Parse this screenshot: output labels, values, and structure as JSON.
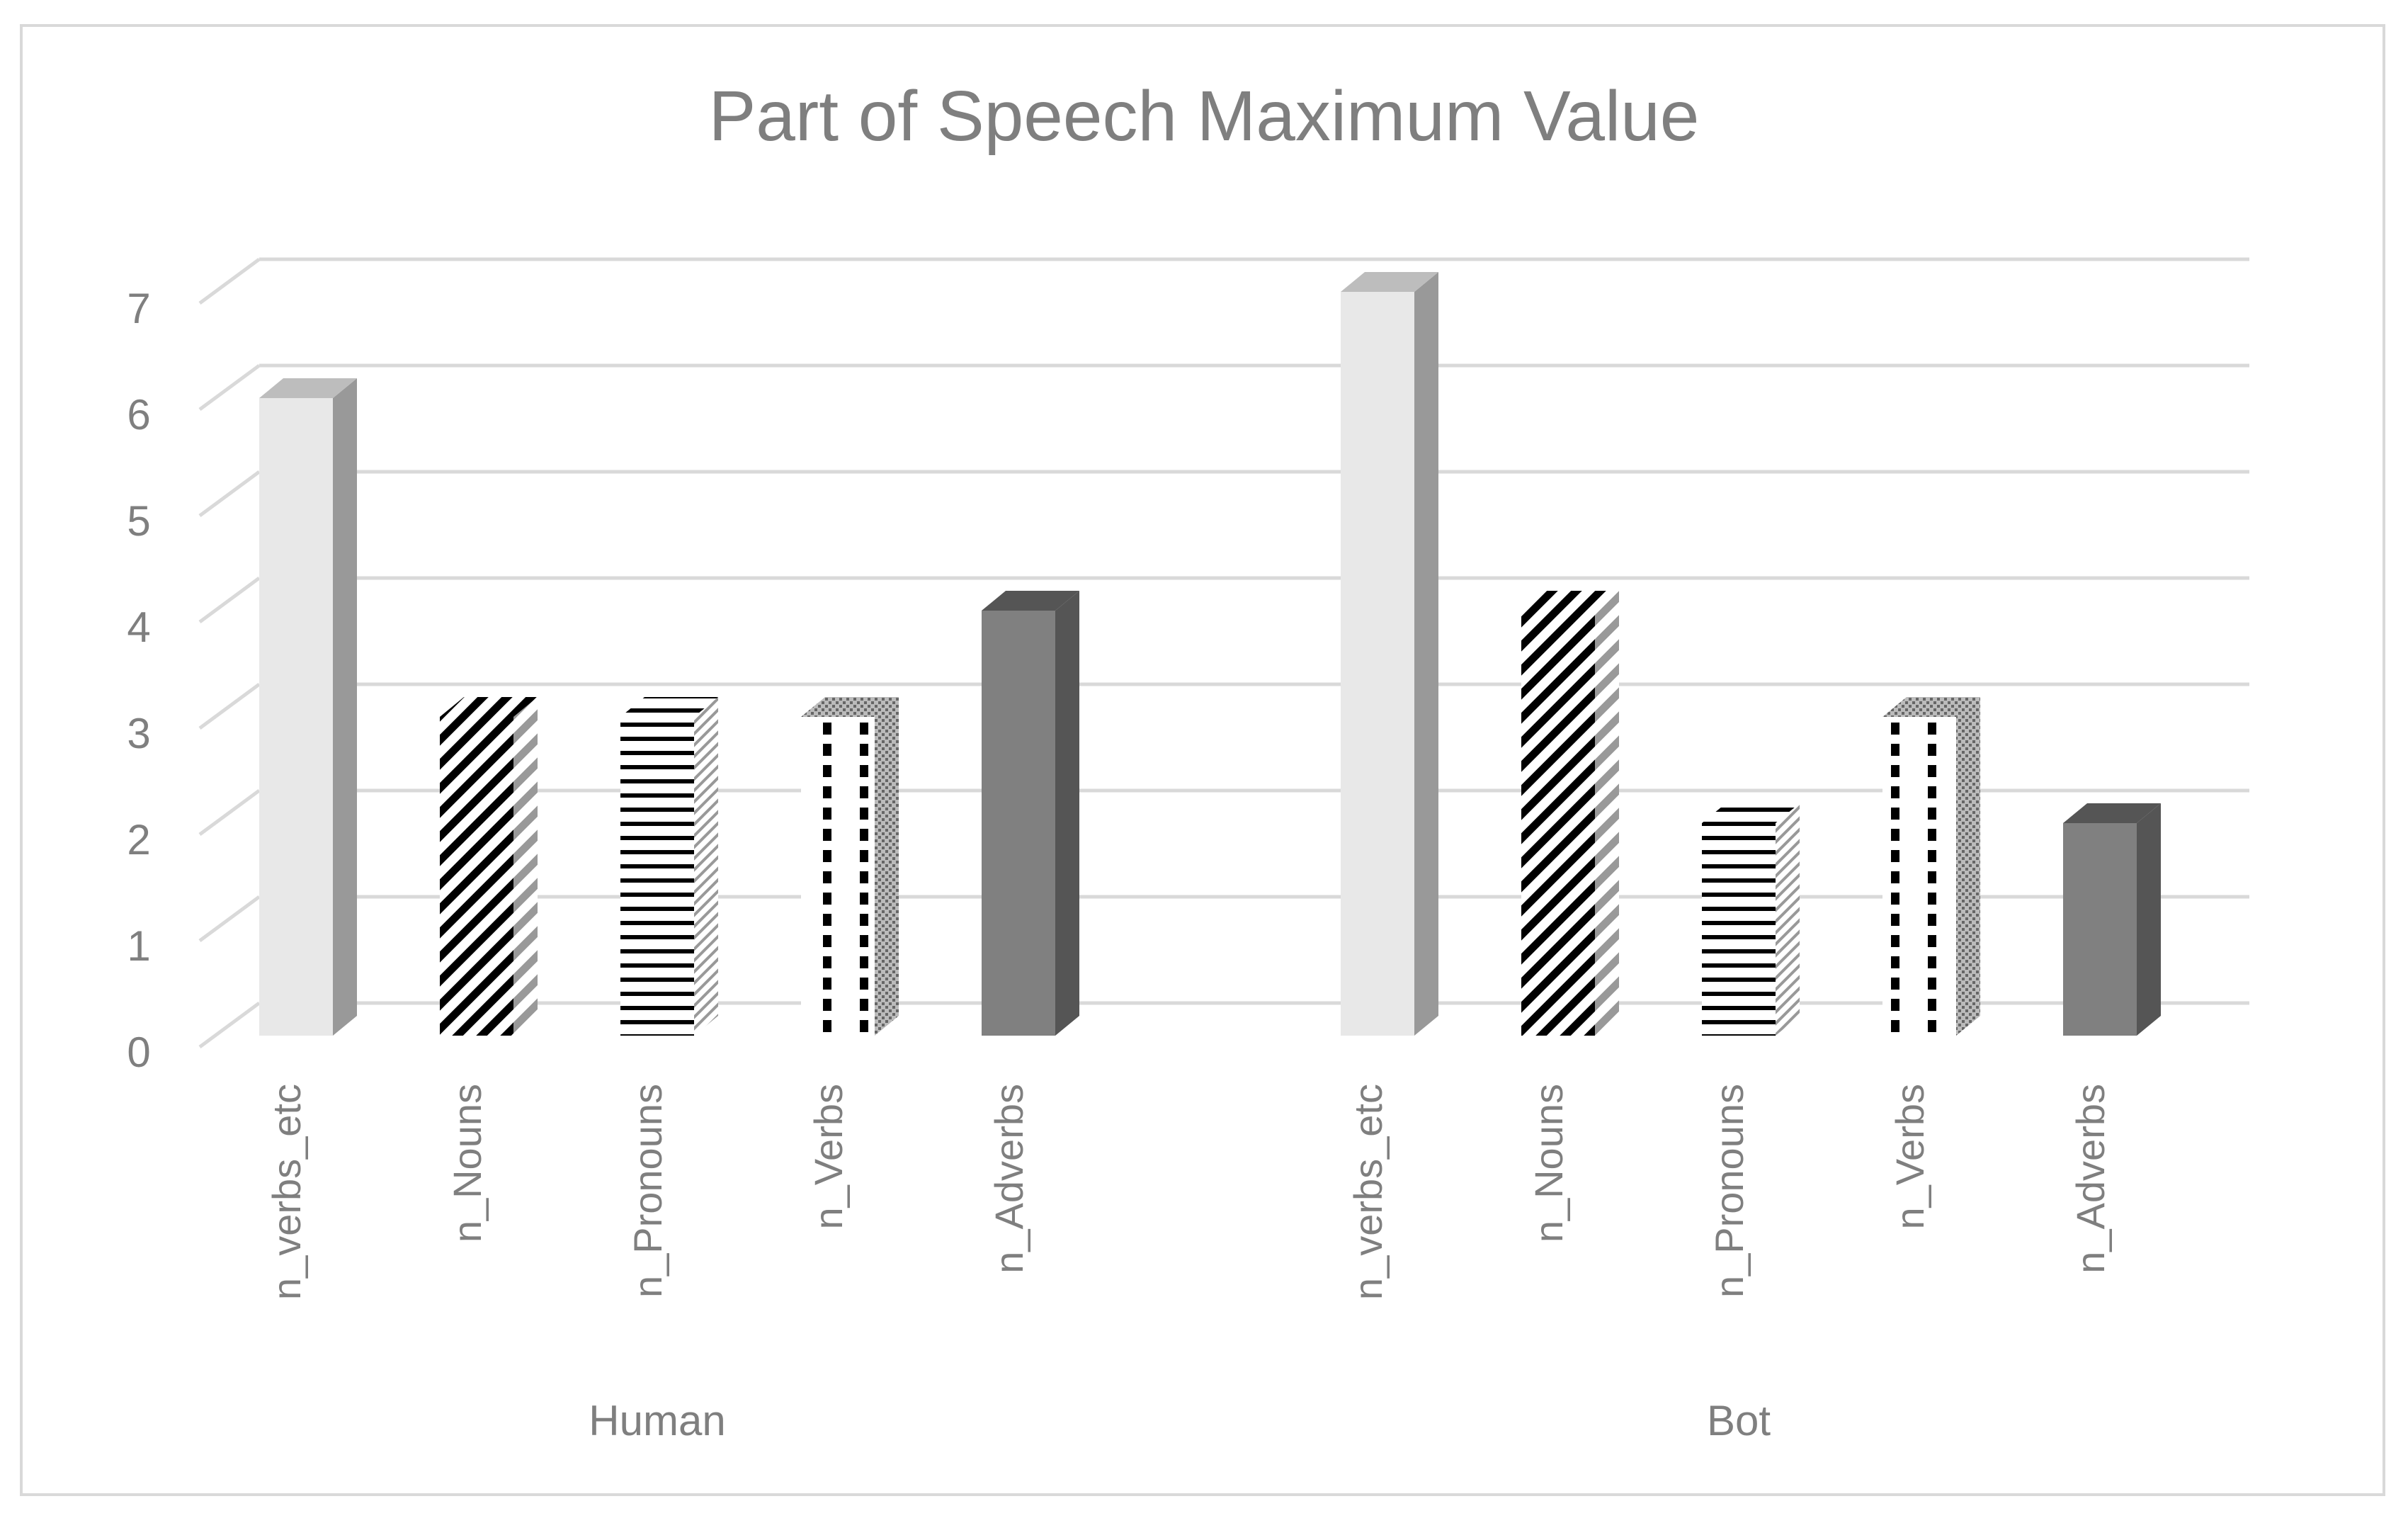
{
  "chart_data": {
    "type": "bar",
    "style": "3d-clustered-column",
    "title": "Part of Speech Maximum Value",
    "xlabel": "",
    "ylabel": "",
    "ylim": [
      0,
      7
    ],
    "y_ticks": [
      "0",
      "1",
      "2",
      "3",
      "4",
      "5",
      "6",
      "7"
    ],
    "grid": true,
    "legend": "none",
    "groups": [
      {
        "name": "Human",
        "categories": [
          "n_verbs_etc",
          "n_Nouns",
          "n_Pronouns",
          "n_Verbs",
          "n_Adverbs"
        ],
        "values": [
          6,
          3,
          3,
          3,
          4
        ]
      },
      {
        "name": "Bot",
        "categories": [
          "n_verbs_etc",
          "n_Nouns",
          "n_Pronouns",
          "n_Verbs",
          "n_Adverbs"
        ],
        "values": [
          7,
          4,
          2,
          3,
          2
        ]
      }
    ],
    "colors": {
      "text": "#7f7f7f",
      "grid": "#d9d9d9",
      "light_bar": "#e8e8e8",
      "light_bar_side": "#999999",
      "dark_bar": "#808080",
      "dark_bar_side": "#555555"
    }
  }
}
